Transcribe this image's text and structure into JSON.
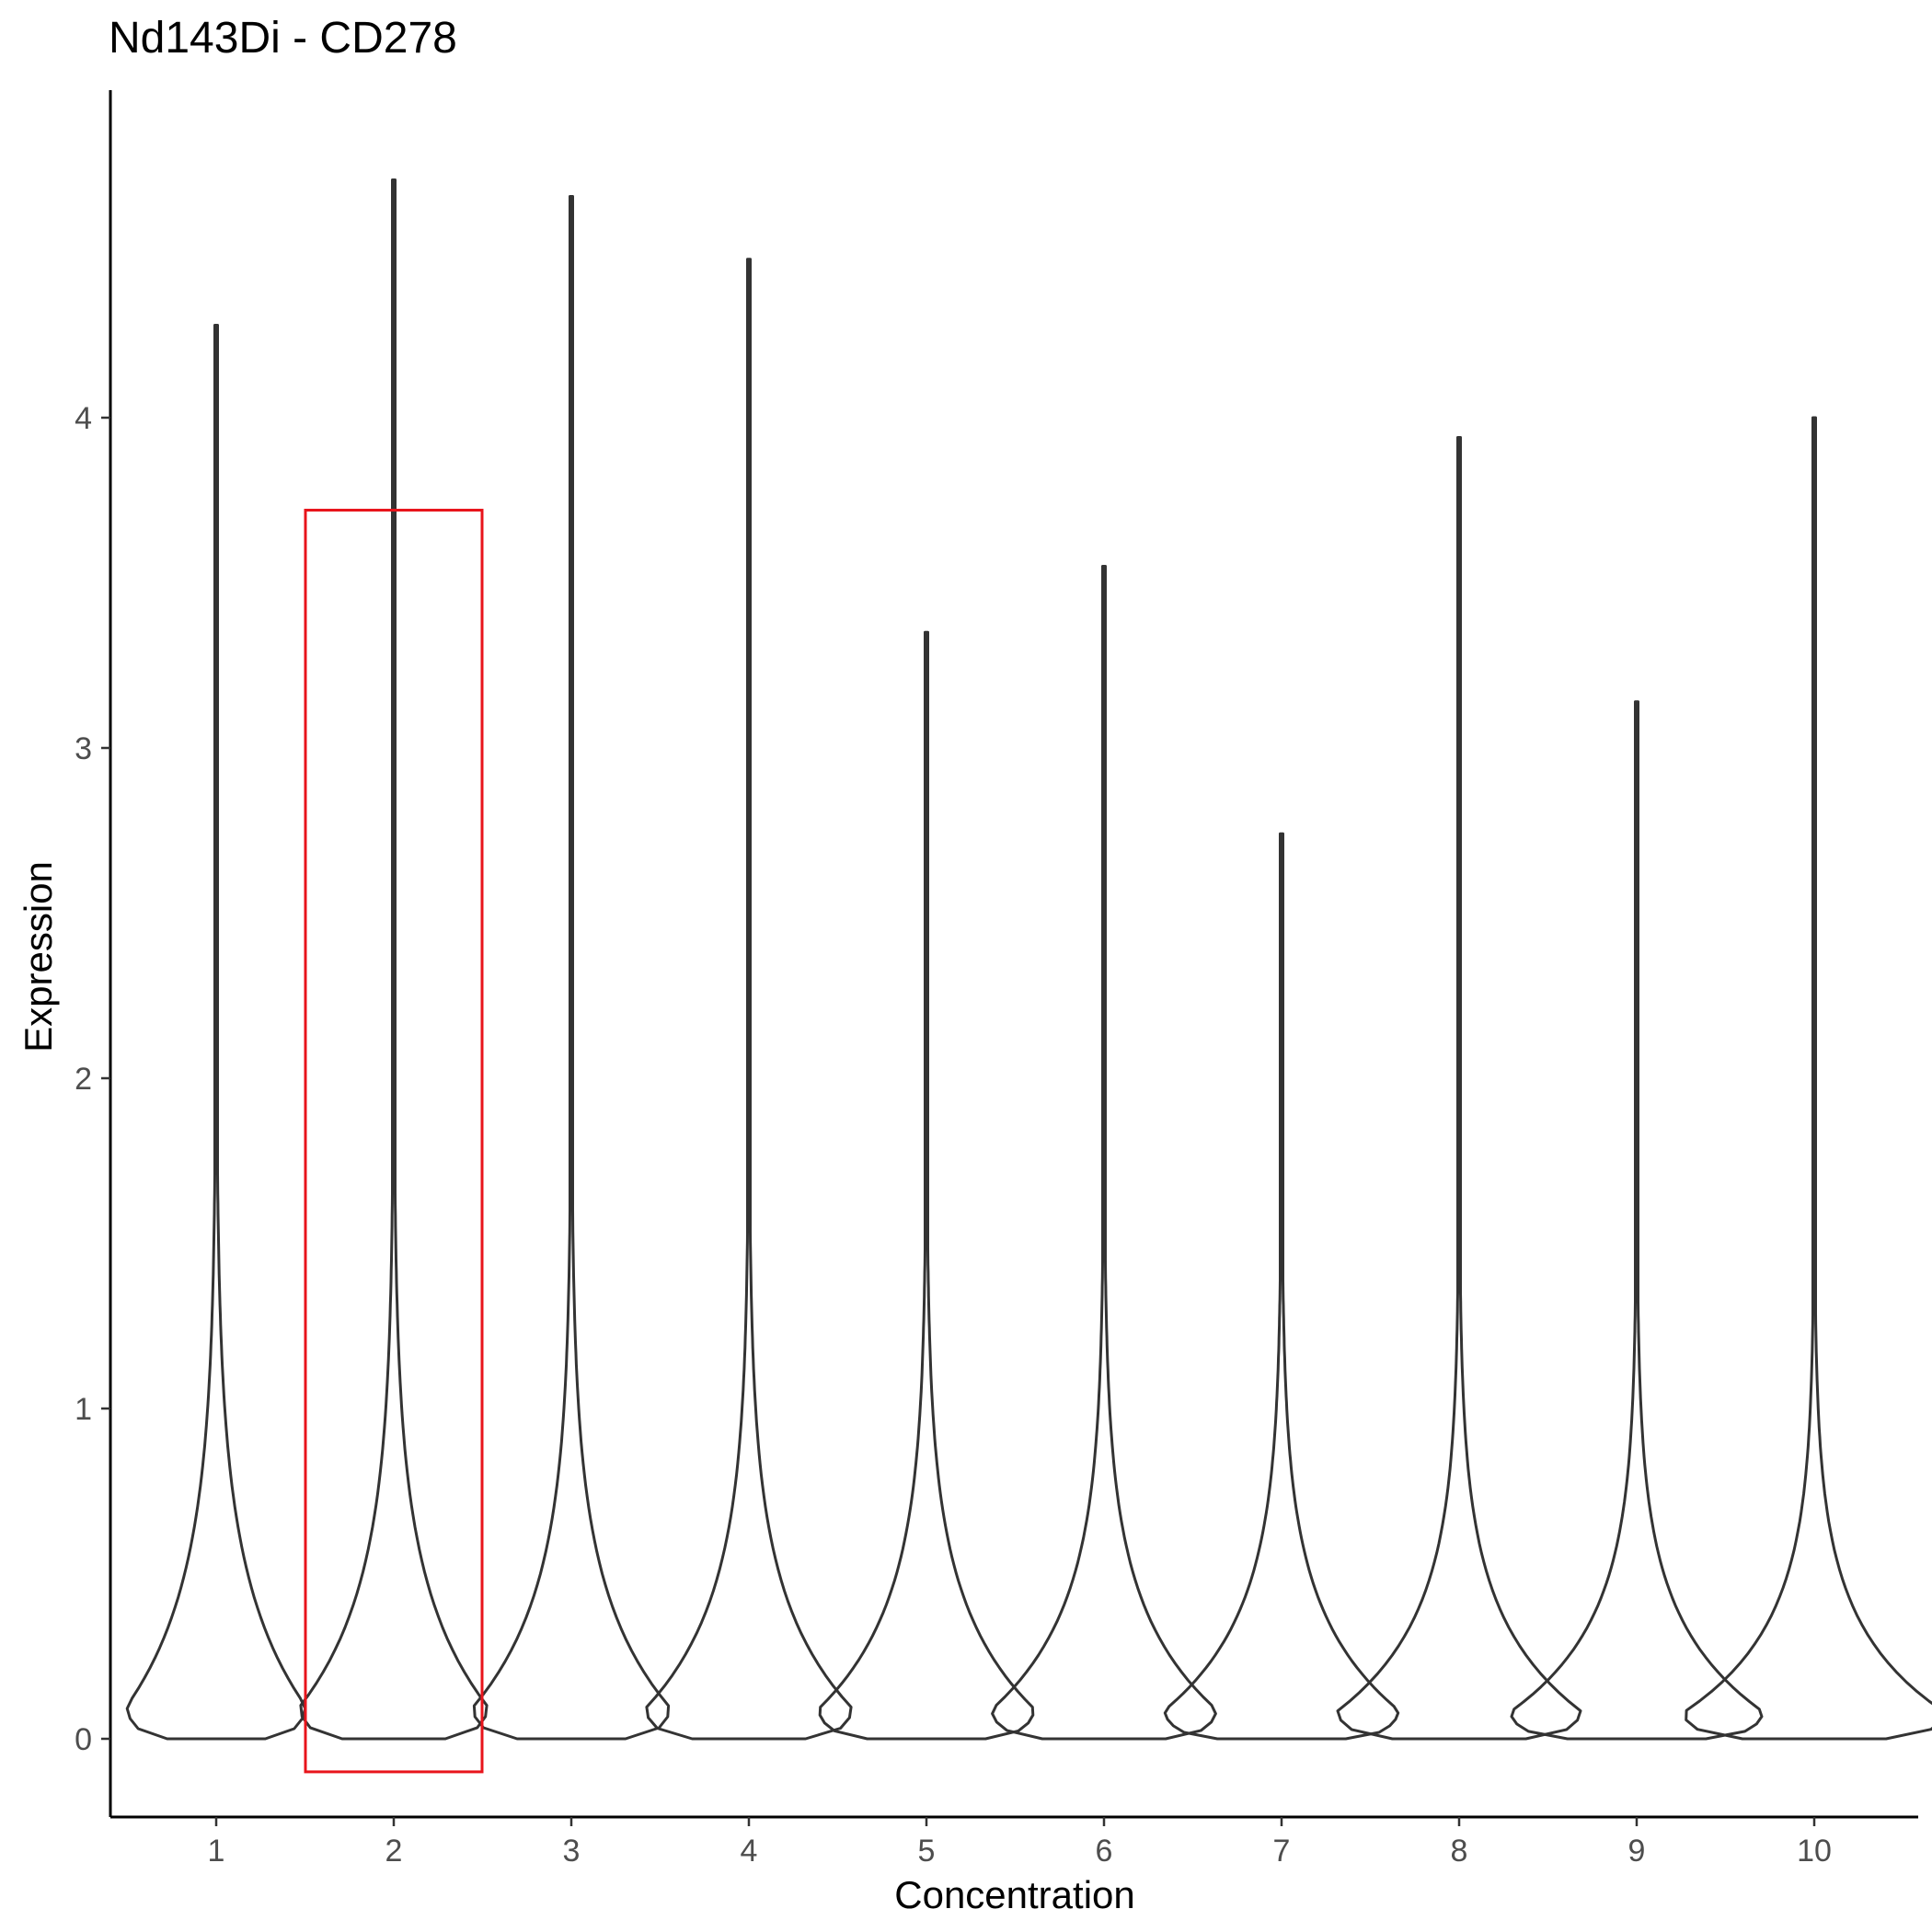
{
  "chart_data": {
    "type": "violin",
    "title": "Nd143Di - CD278",
    "xlabel": "Concentration",
    "ylabel": "Expression",
    "categories": [
      "1",
      "2",
      "3",
      "4",
      "5",
      "6",
      "7",
      "8",
      "9",
      "10"
    ],
    "y_ticks": [
      "0",
      "1",
      "2",
      "3",
      "4"
    ],
    "ylim": [
      -0.23,
      4.9
    ],
    "max_values": [
      4.28,
      4.72,
      4.67,
      4.48,
      3.35,
      3.55,
      2.74,
      3.94,
      3.14,
      4.0
    ],
    "min_values": [
      0,
      0,
      0,
      0,
      0,
      0,
      0,
      0,
      0,
      0
    ],
    "grid": false,
    "legend": "none",
    "highlight": {
      "category": "2",
      "y_range": [
        -0.1,
        3.72
      ],
      "color": "#e8141b"
    },
    "colors": {
      "violin_stroke": "#333333",
      "axis": "#000000",
      "tick_label": "#4d4d4d"
    }
  }
}
